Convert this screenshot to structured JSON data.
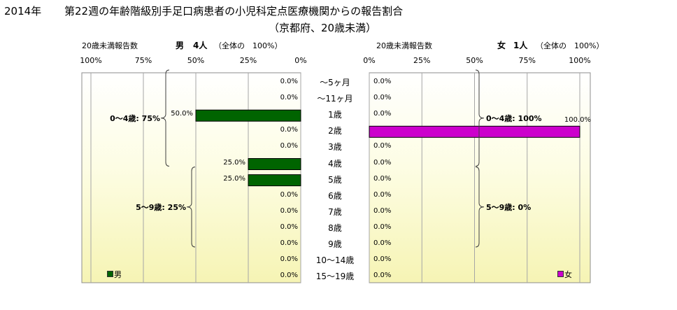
{
  "title": {
    "year": "2014年",
    "main": "第22週の年齢階級別手足口病患者の小児科定点医療機関からの報告割合",
    "sub": "（京都府、20歳未満）"
  },
  "chart_data": {
    "type": "bar",
    "categories": [
      "～5ヶ月",
      "～11ヶ月",
      "1歳",
      "2歳",
      "3歳",
      "4歳",
      "5歳",
      "6歳",
      "7歳",
      "8歳",
      "9歳",
      "10～14歳",
      "15～19歳"
    ],
    "xlim": [
      0,
      100
    ],
    "x_ticks": [
      "100%",
      "75%",
      "50%",
      "25%",
      "0%",
      "0%",
      "25%",
      "50%",
      "75%",
      "100%"
    ],
    "panels": [
      {
        "header_left": "20歳未満報告数",
        "header_name": "男",
        "header_count": "4人",
        "header_note": "（全体の　100%）",
        "direction": "reverse",
        "series": [
          {
            "name": "男",
            "color": "#006400",
            "values": [
              0,
              0,
              50,
              0,
              0,
              25,
              25,
              0,
              0,
              0,
              0,
              0,
              0
            ],
            "labels": [
              "0.0%",
              "0.0%",
              "50.0%",
              "0.0%",
              "0.0%",
              "25.0%",
              "25.0%",
              "0.0%",
              "0.0%",
              "0.0%",
              "0.0%",
              "0.0%",
              "0.0%"
            ]
          }
        ],
        "groups": [
          {
            "label": "0～4歳: 75%",
            "from": 0,
            "to": 5
          },
          {
            "label": "5～9歳: 25%",
            "from": 6,
            "to": 10
          }
        ]
      },
      {
        "header_left": "20歳未満報告数",
        "header_name": "女",
        "header_count": "1人",
        "header_note": "（全体の　100%）",
        "direction": "normal",
        "series": [
          {
            "name": "女",
            "color": "#CC00CC",
            "values": [
              0,
              0,
              0,
              100,
              0,
              0,
              0,
              0,
              0,
              0,
              0,
              0,
              0
            ],
            "labels": [
              "0.0%",
              "0.0%",
              "0.0%",
              "100.0%",
              "0.0%",
              "0.0%",
              "0.0%",
              "0.0%",
              "0.0%",
              "0.0%",
              "0.0%",
              "0.0%",
              "0.0%"
            ]
          }
        ],
        "groups": [
          {
            "label": "0～4歳: 100%",
            "from": 0,
            "to": 5
          },
          {
            "label": "5～9歳: 0%",
            "from": 6,
            "to": 10
          }
        ]
      }
    ]
  }
}
